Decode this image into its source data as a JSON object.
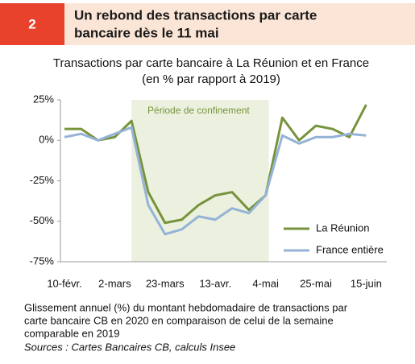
{
  "header": {
    "number": "2",
    "title_lines": [
      "Un rebond des transactions par carte",
      "bancaire dès le 11 mai"
    ]
  },
  "chart_data": {
    "type": "line",
    "title_lines": [
      "Transactions par carte bancaire à La Réunion et en France",
      "(en % par rapport à 2019)"
    ],
    "categories": [
      "10-févr.",
      null,
      null,
      "2-mars",
      null,
      null,
      "23-mars",
      null,
      null,
      "13-avr.",
      null,
      null,
      "4-mai",
      null,
      null,
      "25-mai",
      null,
      null,
      "15-juin"
    ],
    "series": [
      {
        "name": "La Réunion",
        "color": "#77933c",
        "values": [
          7,
          7,
          0,
          2,
          12,
          -32,
          -51,
          -49,
          -40,
          -34,
          -32,
          -43,
          -34,
          14,
          0,
          9,
          7,
          2,
          22
        ]
      },
      {
        "name": "France entière",
        "color": "#95b3d7",
        "values": [
          2,
          4,
          0,
          4,
          8,
          -40,
          -58,
          -55,
          -47,
          -49,
          -42,
          -45,
          -34,
          3,
          -2,
          2,
          2,
          4,
          3
        ]
      }
    ],
    "ylim": [
      -75,
      25
    ],
    "yticks": [
      {
        "value": 25,
        "label": "25%"
      },
      {
        "value": 0,
        "label": "0%"
      },
      {
        "value": -25,
        "label": "-25%"
      },
      {
        "value": -50,
        "label": "-50%"
      },
      {
        "value": -75,
        "label": "-75%"
      }
    ],
    "shaded_span": {
      "label": "Période de confinement",
      "start": 4,
      "end": 12,
      "color": "#ebf1de"
    },
    "legend": "lower right",
    "caption_lines": [
      "Glissement annuel (%) du montant hebdomadaire de transactions par",
      "carte bancaire CB en 2020 en comparaison de celui de la semaine",
      "comparable en 2019"
    ],
    "source": "Sources : Cartes Bancaires CB, calculs Insee"
  }
}
